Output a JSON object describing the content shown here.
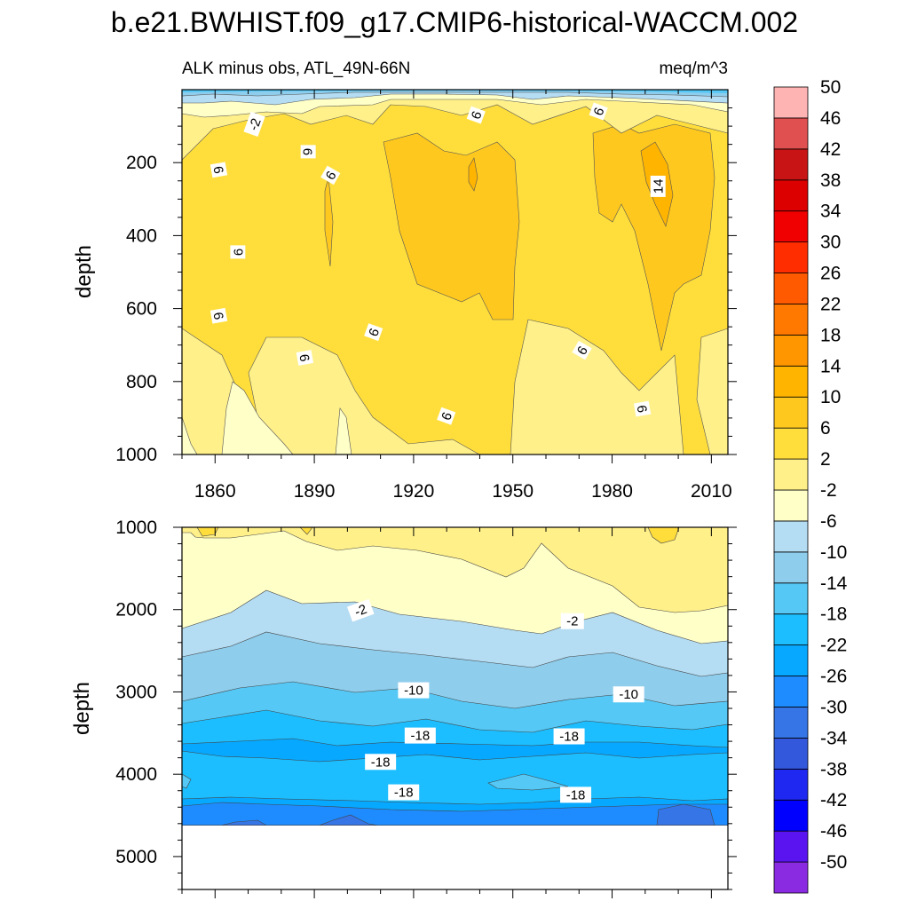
{
  "title": "b.e21.BWHIST.f09_g17.CMIP6-historical-WACCM.002",
  "colors": {
    "levels": [
      "#8a2be2",
      "#5a14f0",
      "#0000ff",
      "#1e28f0",
      "#3358dc",
      "#3575e6",
      "#1e8cff",
      "#07a8ff",
      "#1cbeff",
      "#55c8f5",
      "#8fcdec",
      "#b4dcf2",
      "#ffffc8",
      "#fff08a",
      "#ffde3c",
      "#ffc81e",
      "#ffb400",
      "#ff9600",
      "#ff7800",
      "#ff5a00",
      "#ff2d00",
      "#f00000",
      "#dc0000",
      "#c81414",
      "#e15050",
      "#ffb4b4"
    ]
  },
  "chart_data": [
    {
      "type": "contour",
      "panel": "upper",
      "left_title": "ALK minus obs, ATL_49N-66N",
      "right_title": "meq/m^3",
      "ylabel": "depth",
      "xlim": [
        1850,
        2015
      ],
      "ylim": [
        0,
        1000
      ],
      "y_inverted": true,
      "xticks": [
        1860,
        1890,
        1920,
        1950,
        1980,
        2010
      ],
      "yticks": [
        200,
        400,
        600,
        800,
        1000
      ],
      "contour_labels": [
        {
          "text": "-2",
          "x": 1872,
          "y": 95,
          "rot": -70
        },
        {
          "text": "6",
          "x": 1939,
          "y": 70,
          "rot": -70
        },
        {
          "text": "6",
          "x": 1976,
          "y": 60,
          "rot": -70
        },
        {
          "text": "6",
          "x": 1888,
          "y": 170,
          "rot": 90
        },
        {
          "text": "6",
          "x": 1861,
          "y": 220,
          "rot": 80
        },
        {
          "text": "6",
          "x": 1895,
          "y": 235,
          "rot": -60
        },
        {
          "text": "14",
          "x": 1994,
          "y": 265,
          "rot": -90
        },
        {
          "text": "6",
          "x": 1867,
          "y": 445,
          "rot": -90
        },
        {
          "text": "6",
          "x": 1861,
          "y": 620,
          "rot": 80
        },
        {
          "text": "6",
          "x": 1908,
          "y": 665,
          "rot": -70
        },
        {
          "text": "6",
          "x": 1887,
          "y": 735,
          "rot": 80
        },
        {
          "text": "6",
          "x": 1971,
          "y": 715,
          "rot": -60
        },
        {
          "text": "6",
          "x": 1930,
          "y": 895,
          "rot": -70
        },
        {
          "text": "6",
          "x": 1989,
          "y": 875,
          "rot": 80
        }
      ]
    },
    {
      "type": "contour",
      "panel": "lower",
      "ylabel": "depth",
      "xlim": [
        1850,
        2015
      ],
      "ylim": [
        1000,
        5400
      ],
      "y_inverted": true,
      "data_bottom_depth": 4620,
      "yticks": [
        1000,
        2000,
        3000,
        4000,
        5000
      ],
      "contour_labels": [
        {
          "text": "-2",
          "x": 1904,
          "y": 2010,
          "rot": -20
        },
        {
          "text": "-2",
          "x": 1968,
          "y": 2140,
          "rot": 0
        },
        {
          "text": "-10",
          "x": 1920,
          "y": 2980,
          "rot": 0
        },
        {
          "text": "-10",
          "x": 1985,
          "y": 3030,
          "rot": 0
        },
        {
          "text": "-18",
          "x": 1922,
          "y": 3530,
          "rot": 0
        },
        {
          "text": "-18",
          "x": 1967,
          "y": 3540,
          "rot": 0
        },
        {
          "text": "-18",
          "x": 1910,
          "y": 3850,
          "rot": 0
        },
        {
          "text": "-18",
          "x": 1917,
          "y": 4220,
          "rot": 0
        },
        {
          "text": "-18",
          "x": 1969,
          "y": 4250,
          "rot": 0
        }
      ]
    }
  ],
  "colorbar": {
    "labels": [
      "-50",
      "-46",
      "-42",
      "-38",
      "-34",
      "-30",
      "-26",
      "-22",
      "-18",
      "-14",
      "-10",
      "-6",
      "-2",
      "2",
      "6",
      "10",
      "14",
      "18",
      "22",
      "26",
      "30",
      "34",
      "38",
      "42",
      "46",
      "50"
    ]
  }
}
